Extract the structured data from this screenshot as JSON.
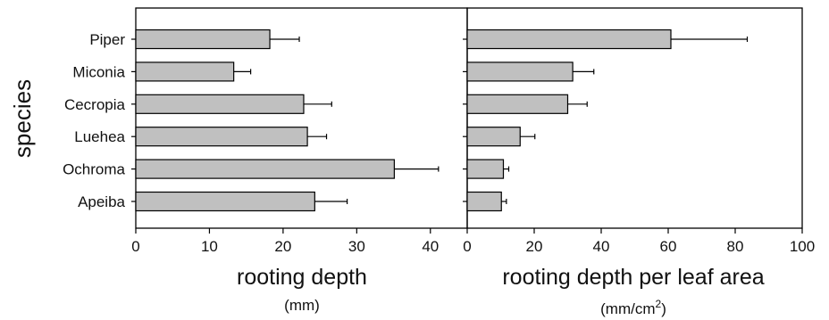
{
  "chart_data": {
    "type": "bar",
    "orientation": "horizontal",
    "error_bars": true,
    "bar_color": "#c0c0c0",
    "ylabel": "species",
    "categories": [
      "Piper",
      "Miconia",
      "Cecropia",
      "Luehea",
      "Ochroma",
      "Apeiba"
    ],
    "panels": [
      {
        "xlabel": "rooting depth",
        "unit": "(mm)",
        "xlim": [
          0,
          45
        ],
        "xticks": [
          "0",
          "10",
          "20",
          "30",
          "40"
        ],
        "values": [
          18.2,
          13.3,
          22.8,
          23.3,
          35.1,
          24.3
        ],
        "errors": [
          4.0,
          2.3,
          3.8,
          2.6,
          6.0,
          4.4
        ]
      },
      {
        "xlabel": "rooting depth per leaf area",
        "unit": "(mm/cm",
        "unit_sup": "2",
        "unit_close": ")",
        "xlim": [
          0,
          100
        ],
        "xticks": [
          "0",
          "20",
          "40",
          "60",
          "80",
          "100"
        ],
        "values": [
          60.8,
          31.5,
          30.0,
          15.8,
          10.8,
          10.2
        ],
        "errors": [
          22.8,
          6.3,
          5.8,
          4.4,
          1.6,
          1.5
        ]
      }
    ]
  }
}
